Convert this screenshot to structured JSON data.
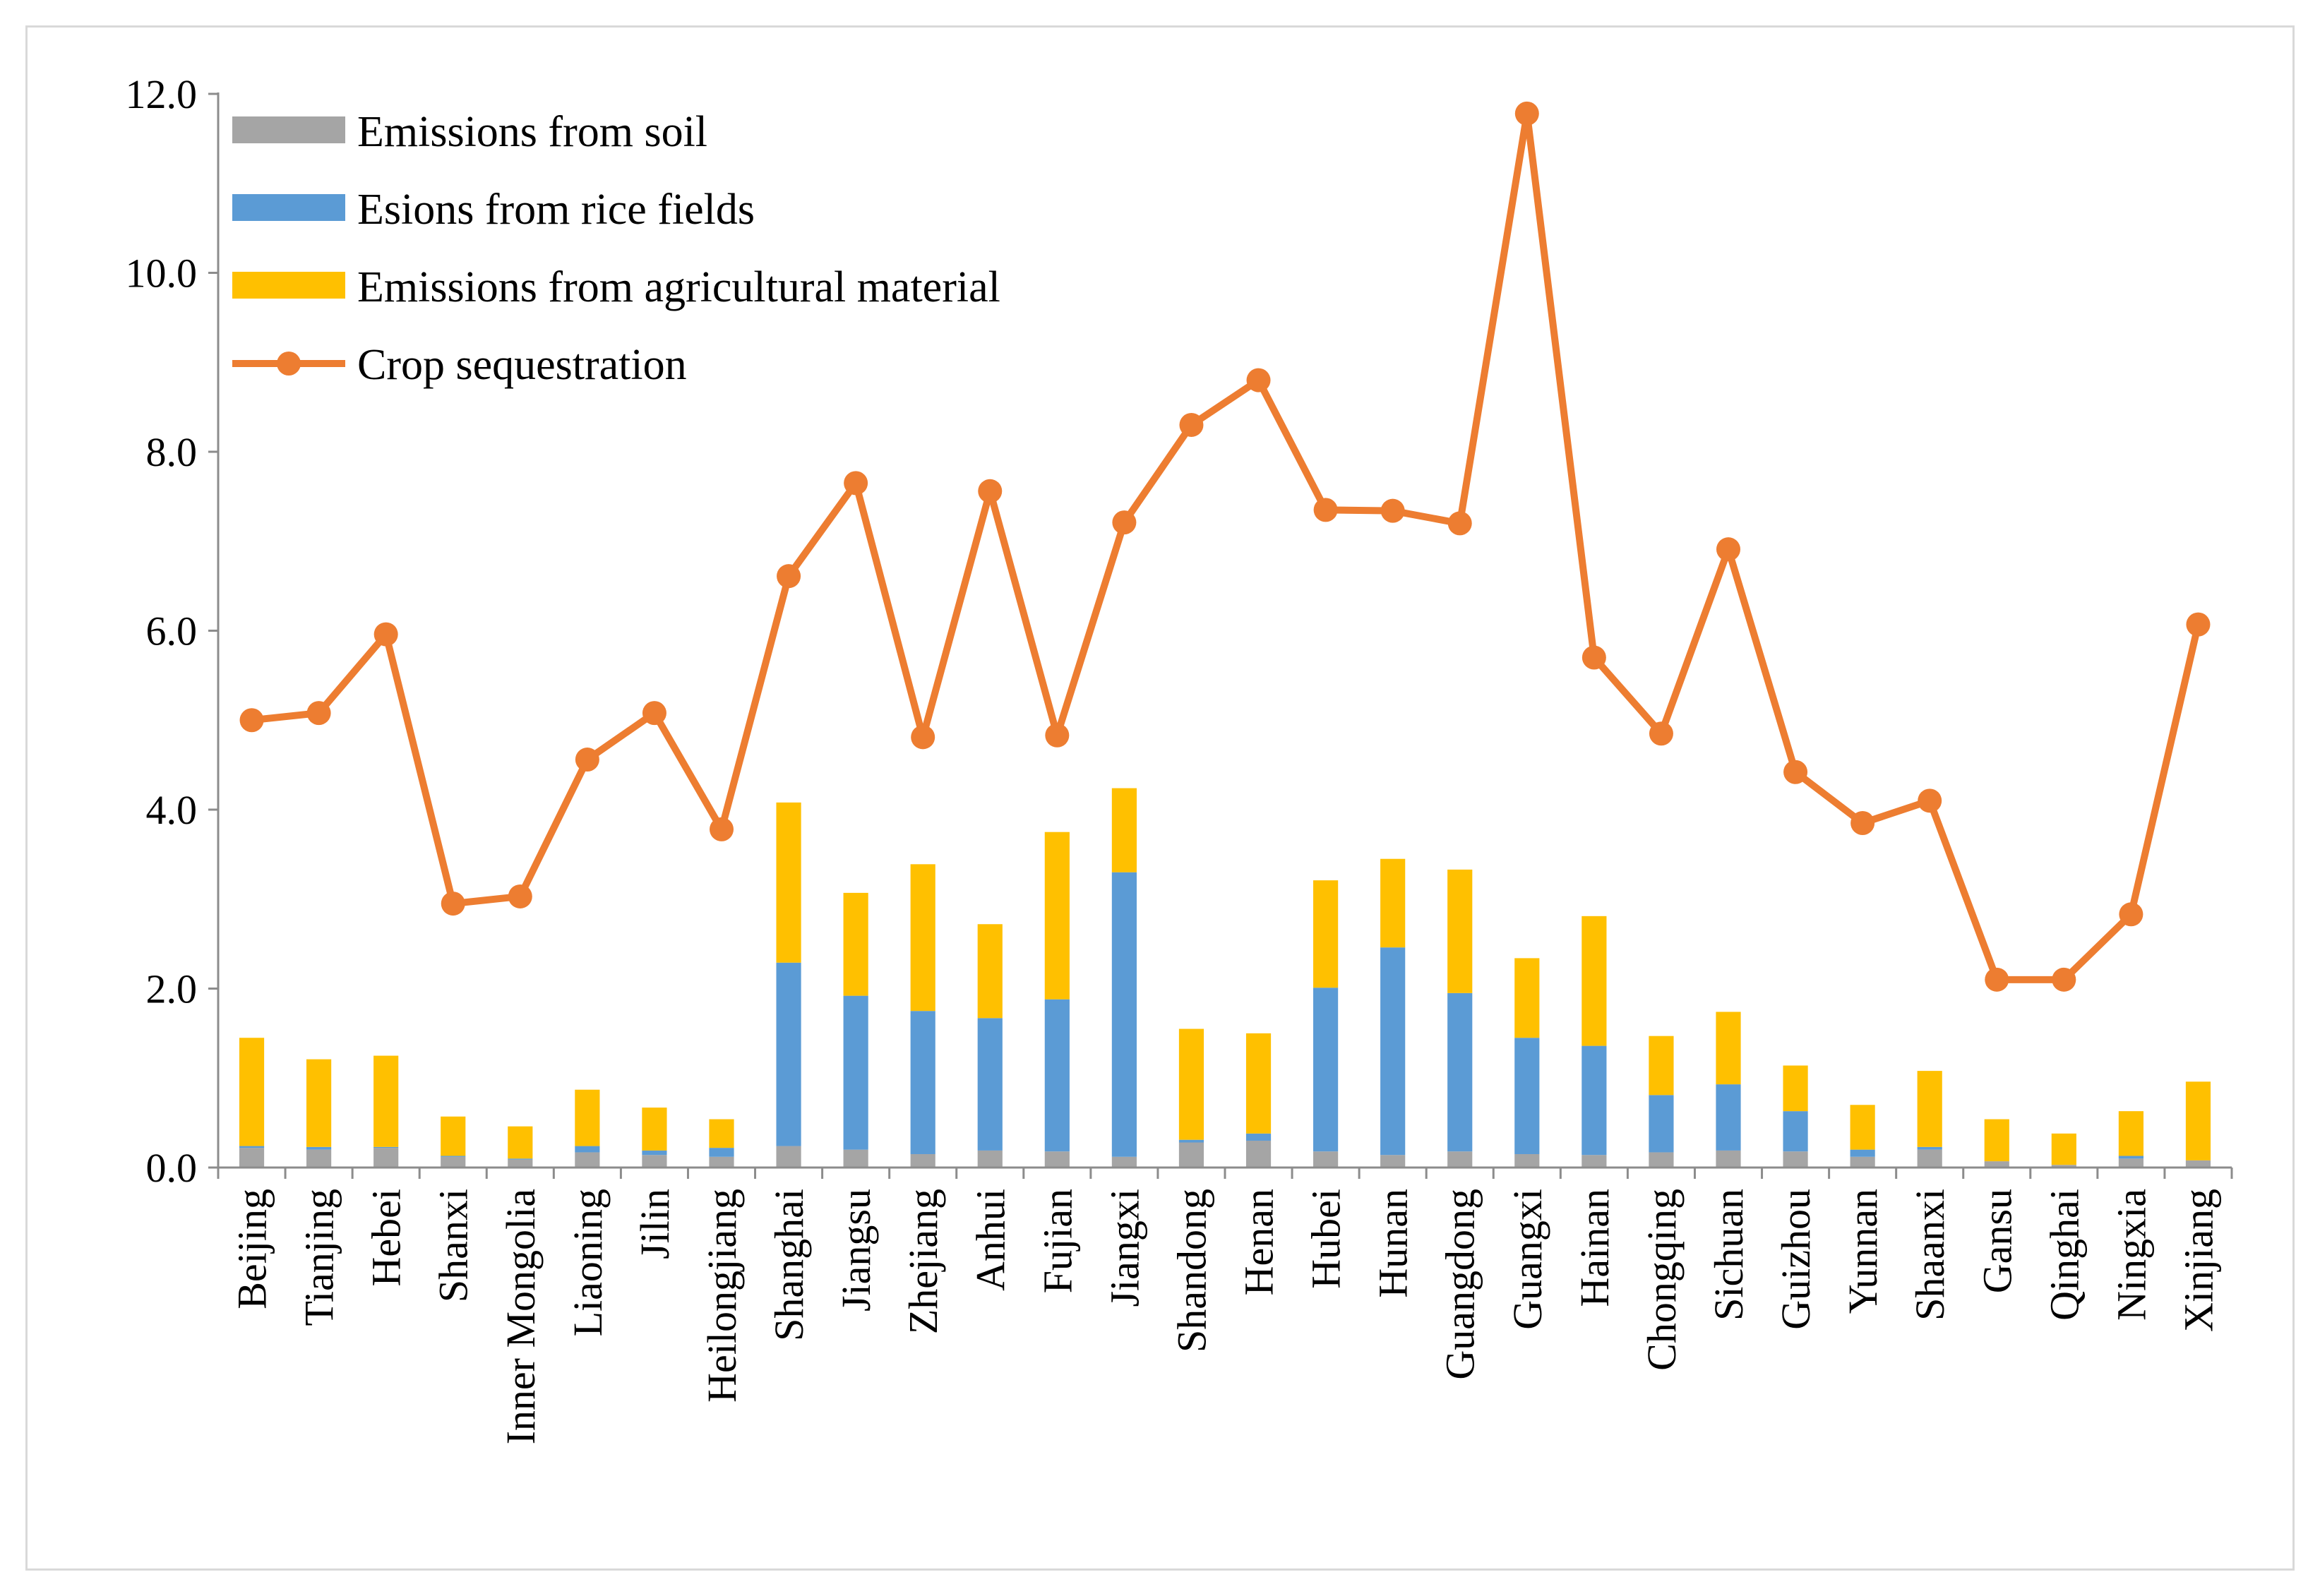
{
  "chart_data": {
    "type": "bar",
    "stacked": true,
    "title": "",
    "xlabel": "",
    "ylabel": "",
    "ylim": [
      0,
      12
    ],
    "yticks": [
      "0.0",
      "2.0",
      "4.0",
      "6.0",
      "8.0",
      "10.0",
      "12.0"
    ],
    "grid": false,
    "legend_position": "top-left",
    "categories": [
      "Beijing",
      "Tianjing",
      "Hebei",
      "Shanxi",
      "Inner Mongolia",
      "Liaoning",
      "Jilin",
      "Heilongjiang",
      "Shanghai",
      "Jiangsu",
      "Zhejiang",
      "Anhui",
      "Fujian",
      "Jiangxi",
      "Shandong",
      "Henan",
      "Hubei",
      "Hunan",
      "Guangdong",
      "Guangxi",
      "Hainan",
      "Chongqing",
      "Sichuan",
      "Guizhou",
      "Yunnan",
      "Shaanxi",
      "Gansu",
      "Qinghai",
      "Ningxia",
      "Xinjiang"
    ],
    "series": [
      {
        "name": "Emissions from soil",
        "kind": "bar",
        "color": "#a5a5a5",
        "values": [
          0.22,
          0.2,
          0.22,
          0.12,
          0.09,
          0.17,
          0.14,
          0.12,
          0.24,
          0.2,
          0.15,
          0.19,
          0.18,
          0.12,
          0.28,
          0.3,
          0.18,
          0.14,
          0.18,
          0.15,
          0.14,
          0.17,
          0.19,
          0.18,
          0.12,
          0.2,
          0.07,
          0.03,
          0.1,
          0.08
        ]
      },
      {
        "name": "Esions from rice fields",
        "kind": "bar",
        "color": "#5b9bd5",
        "values": [
          0.02,
          0.03,
          0.01,
          0.01,
          0.01,
          0.07,
          0.05,
          0.1,
          2.05,
          1.72,
          1.6,
          1.48,
          1.7,
          3.18,
          0.03,
          0.08,
          1.83,
          2.32,
          1.77,
          1.3,
          1.22,
          0.64,
          0.74,
          0.45,
          0.08,
          0.03,
          0.0,
          0.0,
          0.03,
          0.0
        ]
      },
      {
        "name": "Emissions from agricultural material",
        "kind": "bar",
        "color": "#ffc000",
        "values": [
          1.21,
          0.98,
          1.02,
          0.44,
          0.36,
          0.63,
          0.48,
          0.32,
          1.79,
          1.15,
          1.64,
          1.05,
          1.87,
          0.94,
          1.24,
          1.12,
          1.2,
          0.99,
          1.38,
          0.89,
          1.45,
          0.66,
          0.81,
          0.51,
          0.5,
          0.85,
          0.47,
          0.35,
          0.5,
          0.88
        ]
      },
      {
        "name": "Crop sequestration",
        "kind": "line",
        "color": "#ed7d31",
        "values": [
          5.0,
          5.08,
          5.96,
          2.95,
          3.03,
          4.56,
          5.08,
          3.78,
          6.61,
          7.65,
          4.81,
          7.56,
          4.83,
          7.21,
          8.3,
          8.8,
          7.35,
          7.34,
          7.2,
          11.78,
          5.7,
          4.85,
          6.91,
          4.42,
          3.85,
          4.1,
          2.1,
          2.1,
          2.83,
          6.07
        ]
      }
    ]
  }
}
